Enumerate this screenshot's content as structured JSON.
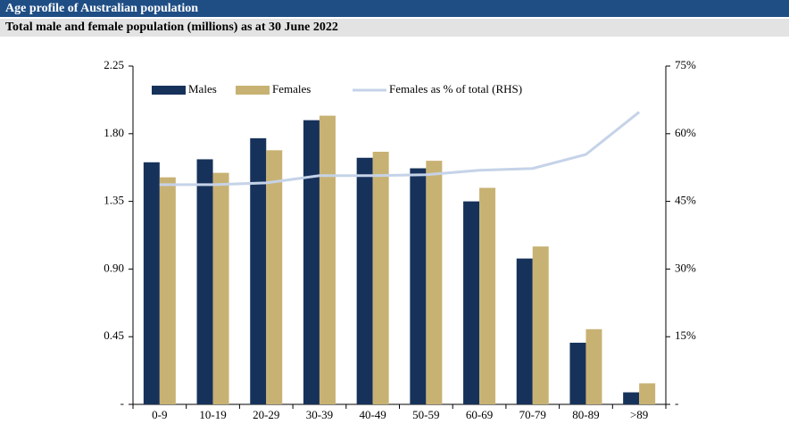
{
  "chart_data": {
    "type": "bar",
    "title": "Age profile of Australian population",
    "subtitle": "Total male and female population (millions) as at 30 June 2022",
    "categories": [
      "0-9",
      "10-19",
      "20-29",
      "30-39",
      "40-49",
      "50-59",
      "60-69",
      "70-79",
      "80-89",
      ">89"
    ],
    "series": [
      {
        "name": "Males",
        "type": "bar",
        "color": "#17325a",
        "values": [
          1.61,
          1.63,
          1.77,
          1.89,
          1.64,
          1.57,
          1.35,
          0.97,
          0.41,
          0.08
        ]
      },
      {
        "name": "Females",
        "type": "bar",
        "color": "#c8b273",
        "values": [
          1.51,
          1.54,
          1.69,
          1.92,
          1.68,
          1.62,
          1.44,
          1.05,
          0.5,
          0.14
        ]
      },
      {
        "name": "Females as % of total (RHS)",
        "type": "line",
        "axis": "y2",
        "color": "#c5d3e8",
        "values": [
          48.7,
          48.7,
          49.1,
          50.7,
          50.7,
          50.9,
          51.9,
          52.3,
          55.4,
          64.8
        ]
      }
    ],
    "ylim": [
      0,
      2.25
    ],
    "yticks": [
      {
        "value": 0,
        "label": "-"
      },
      0.45,
      {
        "value": 0.9,
        "label": "0.90"
      },
      1.35,
      {
        "value": 1.8,
        "label": "1.80"
      },
      2.25
    ],
    "y2lim": [
      0,
      75
    ],
    "y2ticks": [
      {
        "value": 0,
        "label": "-"
      },
      {
        "value": 15,
        "label": "15%"
      },
      {
        "value": 30,
        "label": "30%"
      },
      {
        "value": 45,
        "label": "45%"
      },
      {
        "value": 60,
        "label": "60%"
      },
      {
        "value": 75,
        "label": "75%"
      }
    ],
    "legend": "top"
  }
}
